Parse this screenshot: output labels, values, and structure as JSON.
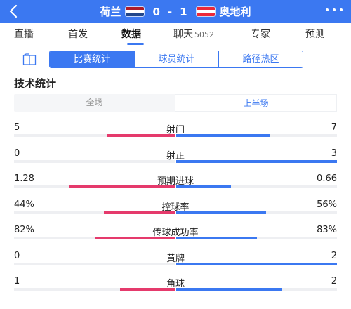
{
  "header": {
    "home_team": "荷兰",
    "away_team": "奥地利",
    "home_score": "0",
    "separator": "-",
    "away_score": "1",
    "back_icon": "chevron-left-icon",
    "more_icon": "more-dots-icon",
    "background": "#3b78f1",
    "home_flag_colors": [
      "#ae1c28",
      "#ffffff",
      "#21468b"
    ],
    "away_flag_colors": [
      "#ed2939",
      "#ffffff",
      "#ed2939"
    ]
  },
  "tabs": [
    {
      "label": "直播"
    },
    {
      "label": "首发"
    },
    {
      "label": "数据",
      "active": true
    },
    {
      "label": "聊天",
      "count": "5052"
    },
    {
      "label": "专家"
    },
    {
      "label": "预测"
    }
  ],
  "subtabs": [
    {
      "label": "比赛统计",
      "active": true
    },
    {
      "label": "球员统计"
    },
    {
      "label": "路径热区"
    }
  ],
  "section_title": "技术统计",
  "period": {
    "full": "全场",
    "first_half": "上半场",
    "active": "first_half"
  },
  "stats": [
    {
      "name": "射门",
      "left": "5",
      "right": "7",
      "left_ratio": 0.42,
      "right_ratio": 0.58
    },
    {
      "name": "射正",
      "left": "0",
      "right": "3",
      "left_ratio": 0.0,
      "right_ratio": 1.0
    },
    {
      "name": "预期进球",
      "left": "1.28",
      "right": "0.66",
      "left_ratio": 0.66,
      "right_ratio": 0.34
    },
    {
      "name": "控球率",
      "left": "44%",
      "right": "56%",
      "left_ratio": 0.44,
      "right_ratio": 0.56
    },
    {
      "name": "传球成功率",
      "left": "82%",
      "right": "83%",
      "left_ratio": 0.5,
      "right_ratio": 0.5
    },
    {
      "name": "黄牌",
      "left": "0",
      "right": "2",
      "left_ratio": 0.0,
      "right_ratio": 1.0
    },
    {
      "name": "角球",
      "left": "1",
      "right": "2",
      "left_ratio": 0.34,
      "right_ratio": 0.66
    }
  ],
  "colors": {
    "accent": "#3b78f1",
    "home_bar": "#e53a6c",
    "away_bar": "#3b78f1"
  }
}
